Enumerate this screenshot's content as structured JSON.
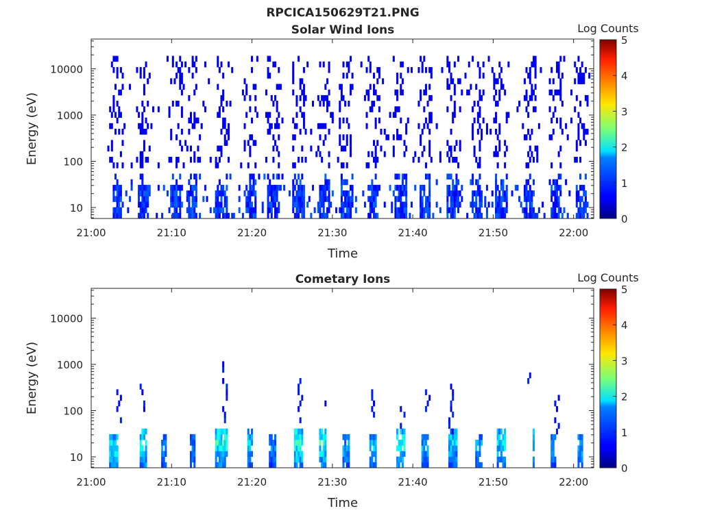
{
  "figure": {
    "title": "RPCICA150629T21.PNG"
  },
  "chart_data": [
    {
      "type": "heatmap",
      "title": "Solar Wind Ions",
      "xlabel": "Time",
      "ylabel": "Energy (eV)",
      "x_ticks": [
        "21:00",
        "21:10",
        "21:20",
        "21:30",
        "21:40",
        "21:50",
        "22:00"
      ],
      "x_tick_minutes": [
        0,
        10,
        20,
        30,
        40,
        50,
        60
      ],
      "xlim_minutes": [
        0,
        62.5
      ],
      "y_ticks": [
        "10",
        "100",
        "1000",
        "10000"
      ],
      "y_tick_values": [
        10,
        100,
        1000,
        10000
      ],
      "ylim": [
        5.8,
        44000
      ],
      "y_scale": "log",
      "colorbar": {
        "label": "Log Counts",
        "ticks": [
          "0",
          "1",
          "2",
          "3",
          "4",
          "5"
        ],
        "range": [
          0,
          5
        ]
      },
      "lowband": {
        "start_min": 2.6,
        "end_min": 62.0,
        "center": 20,
        "halfspan": 0.55,
        "ptype": "sw"
      },
      "scatter": {
        "start_min": 2.0,
        "end_min": 62.3,
        "emin": 80,
        "emax": 15000
      },
      "bursts": [
        3.2,
        6.5,
        10.5,
        12.5,
        16.2,
        19.8,
        22.6,
        25.8,
        29.0,
        31.8,
        35.0,
        38.5,
        41.5,
        45.0,
        48.0,
        51.0,
        54.5,
        57.8,
        61.0
      ]
    },
    {
      "type": "heatmap",
      "title": "Cometary Ions",
      "xlabel": "Time",
      "ylabel": "Energy (eV)",
      "x_ticks": [
        "21:00",
        "21:10",
        "21:20",
        "21:30",
        "21:40",
        "21:50",
        "22:00"
      ],
      "x_tick_minutes": [
        0,
        10,
        20,
        30,
        40,
        50,
        60
      ],
      "xlim_minutes": [
        0,
        62.5
      ],
      "y_ticks": [
        "10",
        "100",
        "1000",
        "10000"
      ],
      "y_tick_values": [
        10,
        100,
        1000,
        10000
      ],
      "ylim": [
        5.8,
        44000
      ],
      "y_scale": "log",
      "colorbar": {
        "label": "Log Counts",
        "ticks": [
          "0",
          "1",
          "2",
          "3",
          "4",
          "5"
        ],
        "range": [
          0,
          5
        ]
      },
      "lowband": {
        "start_min": 2.5,
        "end_min": 61.5,
        "center": 20,
        "halfspan": 0.5,
        "ptype": "com"
      },
      "columns": [
        {
          "t": 2.8,
          "w": 1.3,
          "top": 30,
          "peak": 1.8
        },
        {
          "t": 6.5,
          "w": 1.0,
          "top": 40,
          "peak": 1.9
        },
        {
          "t": 9.0,
          "w": 0.6,
          "top": 30,
          "peak": 1.3
        },
        {
          "t": 12.6,
          "w": 0.6,
          "top": 25,
          "peak": 1.2
        },
        {
          "t": 16.2,
          "w": 1.5,
          "top": 35,
          "peak": 2.0
        },
        {
          "t": 19.8,
          "w": 0.8,
          "top": 40,
          "peak": 1.5
        },
        {
          "t": 22.5,
          "w": 0.8,
          "top": 25,
          "peak": 1.2
        },
        {
          "t": 25.8,
          "w": 1.3,
          "top": 40,
          "peak": 2.0
        },
        {
          "t": 28.8,
          "w": 1.0,
          "top": 35,
          "peak": 1.9
        },
        {
          "t": 31.8,
          "w": 0.9,
          "top": 30,
          "peak": 1.4
        },
        {
          "t": 35.0,
          "w": 0.9,
          "top": 30,
          "peak": 1.5
        },
        {
          "t": 38.5,
          "w": 1.2,
          "top": 40,
          "peak": 1.9
        },
        {
          "t": 41.5,
          "w": 1.0,
          "top": 30,
          "peak": 1.3
        },
        {
          "t": 45.0,
          "w": 1.1,
          "top": 35,
          "peak": 1.6
        },
        {
          "t": 48.2,
          "w": 0.8,
          "top": 30,
          "peak": 1.4
        },
        {
          "t": 51.0,
          "w": 1.2,
          "top": 35,
          "peak": 1.7
        },
        {
          "t": 55.0,
          "w": 0.3,
          "top": 35,
          "peak": 1.8
        },
        {
          "t": 57.5,
          "w": 0.8,
          "top": 25,
          "peak": 1.3
        },
        {
          "t": 60.8,
          "w": 0.8,
          "top": 30,
          "peak": 1.4
        }
      ],
      "streaks": [
        {
          "t": 3.5,
          "emin": 60,
          "emax": 300
        },
        {
          "t": 6.4,
          "emin": 80,
          "emax": 300
        },
        {
          "t": 16.6,
          "emin": 50,
          "emax": 900
        },
        {
          "t": 25.9,
          "emin": 60,
          "emax": 400
        },
        {
          "t": 29.0,
          "emin": 90,
          "emax": 150
        },
        {
          "t": 35.2,
          "emin": 90,
          "emax": 250
        },
        {
          "t": 38.6,
          "emin": 40,
          "emax": 120
        },
        {
          "t": 41.8,
          "emin": 100,
          "emax": 250
        },
        {
          "t": 44.8,
          "emin": 40,
          "emax": 450
        },
        {
          "t": 54.6,
          "emin": 400,
          "emax": 650
        },
        {
          "t": 57.9,
          "emin": 40,
          "emax": 220
        }
      ]
    }
  ]
}
